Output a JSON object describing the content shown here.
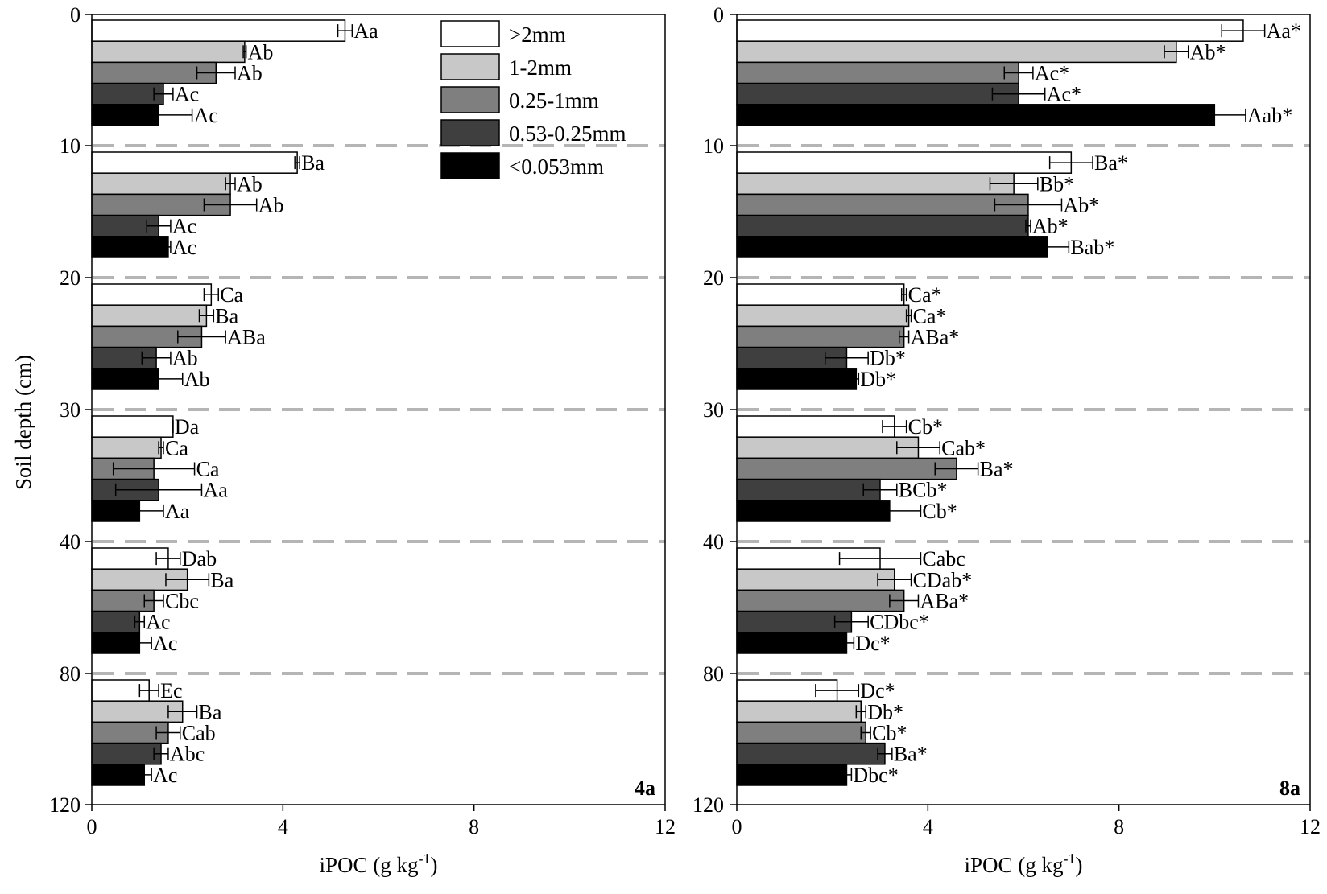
{
  "chart_data": {
    "type": "bar",
    "orientation": "horizontal",
    "y_axis_title": "Soil depth (cm)",
    "y_ticks": [
      "0",
      "10",
      "20",
      "30",
      "40",
      "80",
      "120"
    ],
    "depth_groups": [
      "0-10",
      "10-20",
      "20-30",
      "30-40",
      "40-80",
      "80-120"
    ],
    "series": [
      {
        "name": ">2mm",
        "color": "#ffffff"
      },
      {
        "name": "1-2mm",
        "color": "#c8c8c8"
      },
      {
        "name": "0.25-1mm",
        "color": "#7f7f7f"
      },
      {
        "name": "0.53-0.25mm",
        "color": "#3f3f3f"
      },
      {
        "name": "<0.053mm",
        "color": "#000000"
      }
    ],
    "legend": [
      {
        "label": ">2mm"
      },
      {
        "label": "1-2mm"
      },
      {
        "label": "0.25-1mm"
      },
      {
        "label": "0.53-0.25mm"
      },
      {
        "label": "<0.053mm"
      }
    ],
    "panels": [
      {
        "tag": "4a",
        "xlabel": "iPOC (g kg-1)",
        "xlim": [
          0,
          12
        ],
        "x_ticks": [
          "0",
          "4",
          "8",
          "12"
        ],
        "groups": [
          {
            "values": [
              5.3,
              3.2,
              2.6,
              1.5,
              1.4
            ],
            "errors": [
              0.15,
              0.03,
              0.4,
              0.2,
              0.7
            ],
            "labels": [
              "Aa",
              "Ab",
              "Ab",
              "Ac",
              "Ac"
            ]
          },
          {
            "values": [
              4.3,
              2.9,
              2.9,
              1.4,
              1.6
            ],
            "errors": [
              0.05,
              0.1,
              0.55,
              0.25,
              0.05
            ],
            "labels": [
              "Ba",
              "Ab",
              "Ab",
              "Ac",
              "Ac"
            ]
          },
          {
            "values": [
              2.5,
              2.4,
              2.3,
              1.35,
              1.4
            ],
            "errors": [
              0.15,
              0.15,
              0.5,
              0.3,
              0.5
            ],
            "labels": [
              "Ca",
              "Ba",
              "ABa",
              "Ab",
              "Ab"
            ]
          },
          {
            "values": [
              1.7,
              1.45,
              1.3,
              1.4,
              1.0
            ],
            "errors": [
              0.0,
              0.05,
              0.85,
              0.9,
              0.5
            ],
            "labels": [
              "Da",
              "Ca",
              "Ca",
              "Aa",
              "Aa"
            ]
          },
          {
            "values": [
              1.6,
              2.0,
              1.3,
              1.0,
              1.0
            ],
            "errors": [
              0.25,
              0.45,
              0.2,
              0.1,
              0.25
            ],
            "labels": [
              "Dab",
              "Ba",
              "Cbc",
              "Ac",
              "Ac"
            ]
          },
          {
            "values": [
              1.2,
              1.9,
              1.6,
              1.45,
              1.1
            ],
            "errors": [
              0.2,
              0.3,
              0.25,
              0.15,
              0.15
            ],
            "labels": [
              "Ec",
              "Ba",
              "Cab",
              "Abc",
              "Ac"
            ]
          }
        ]
      },
      {
        "tag": "8a",
        "xlabel": "iPOC (g kg-1)",
        "xlim": [
          0,
          12
        ],
        "x_ticks": [
          "0",
          "4",
          "8",
          "12"
        ],
        "groups": [
          {
            "values": [
              10.6,
              9.2,
              5.9,
              5.9,
              10.0
            ],
            "errors": [
              0.45,
              0.25,
              0.3,
              0.55,
              0.65
            ],
            "labels": [
              "Aa*",
              "Ab*",
              "Ac*",
              "Ac*",
              "Aab*"
            ]
          },
          {
            "values": [
              7.0,
              5.8,
              6.1,
              6.1,
              6.5
            ],
            "errors": [
              0.45,
              0.5,
              0.7,
              0.05,
              0.45
            ],
            "labels": [
              "Ba*",
              "Bb*",
              "Ab*",
              "Ab*",
              "Bab*"
            ]
          },
          {
            "values": [
              3.5,
              3.6,
              3.5,
              2.3,
              2.5
            ],
            "errors": [
              0.05,
              0.05,
              0.1,
              0.45,
              0.05
            ],
            "labels": [
              "Ca*",
              "Ca*",
              "ABa*",
              "Db*",
              "Db*"
            ]
          },
          {
            "values": [
              3.3,
              3.8,
              4.6,
              3.0,
              3.2
            ],
            "errors": [
              0.25,
              0.45,
              0.45,
              0.35,
              0.65
            ],
            "labels": [
              "Cb*",
              "Cab*",
              "Ba*",
              "BCb*",
              "Cb*"
            ]
          },
          {
            "values": [
              3.0,
              3.3,
              3.5,
              2.4,
              2.3
            ],
            "errors": [
              0.85,
              0.35,
              0.3,
              0.35,
              0.15
            ],
            "labels": [
              "Cabc",
              "CDab*",
              "ABa*",
              "CDbc*",
              "Dc*"
            ]
          },
          {
            "values": [
              2.1,
              2.6,
              2.7,
              3.1,
              2.3
            ],
            "errors": [
              0.45,
              0.1,
              0.1,
              0.15,
              0.1
            ],
            "labels": [
              "Dc*",
              "Db*",
              "Cb*",
              "Ba*",
              "Dbc*"
            ]
          }
        ]
      }
    ]
  }
}
